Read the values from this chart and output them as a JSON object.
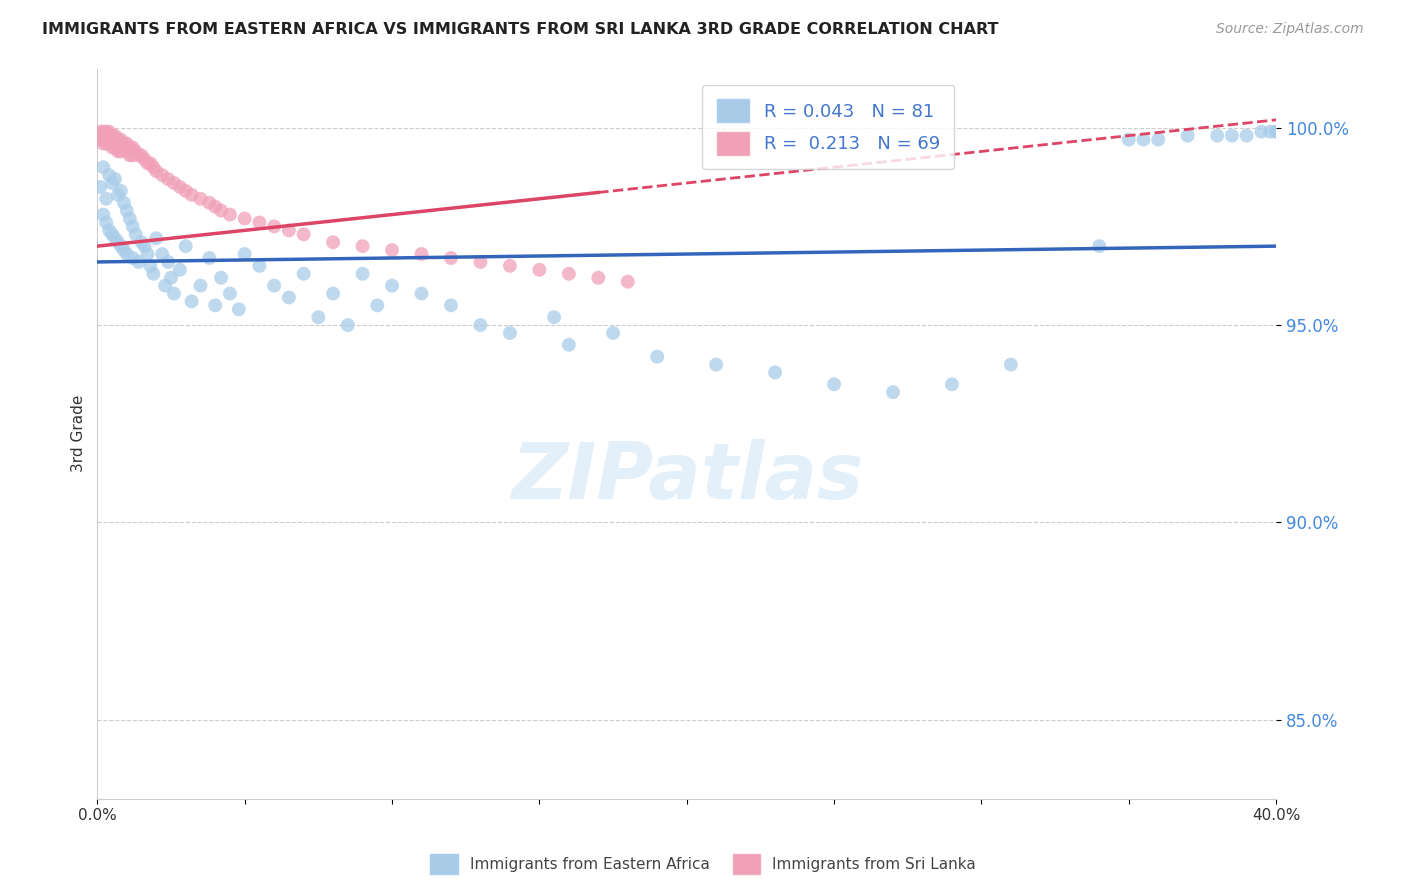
{
  "title": "IMMIGRANTS FROM EASTERN AFRICA VS IMMIGRANTS FROM SRI LANKA 3RD GRADE CORRELATION CHART",
  "source": "Source: ZipAtlas.com",
  "ylabel": "3rd Grade",
  "x_min": 0.0,
  "x_max": 0.4,
  "y_min": 0.83,
  "y_max": 1.015,
  "x_ticks": [
    0.0,
    0.05,
    0.1,
    0.15,
    0.2,
    0.25,
    0.3,
    0.35,
    0.4
  ],
  "y_ticks": [
    0.85,
    0.9,
    0.95,
    1.0
  ],
  "y_tick_labels": [
    "85.0%",
    "90.0%",
    "95.0%",
    "100.0%"
  ],
  "blue_color": "#a8cce8",
  "pink_color": "#f0a0b8",
  "blue_line_color": "#3366bb",
  "pink_line_color": "#dd4466",
  "legend_blue_R": "0.043",
  "legend_blue_N": "81",
  "legend_pink_R": "0.213",
  "legend_pink_N": "69",
  "blue_scatter_x": [
    0.001,
    0.002,
    0.002,
    0.003,
    0.003,
    0.004,
    0.004,
    0.005,
    0.005,
    0.006,
    0.006,
    0.007,
    0.007,
    0.008,
    0.008,
    0.009,
    0.009,
    0.01,
    0.01,
    0.011,
    0.012,
    0.012,
    0.013,
    0.014,
    0.015,
    0.016,
    0.017,
    0.018,
    0.019,
    0.02,
    0.022,
    0.023,
    0.024,
    0.025,
    0.026,
    0.028,
    0.03,
    0.032,
    0.035,
    0.038,
    0.04,
    0.042,
    0.045,
    0.048,
    0.05,
    0.055,
    0.06,
    0.065,
    0.07,
    0.075,
    0.08,
    0.085,
    0.09,
    0.095,
    0.1,
    0.11,
    0.12,
    0.13,
    0.14,
    0.155,
    0.16,
    0.175,
    0.19,
    0.21,
    0.23,
    0.25,
    0.27,
    0.29,
    0.31,
    0.34,
    0.35,
    0.355,
    0.36,
    0.37,
    0.38,
    0.385,
    0.39,
    0.395,
    0.398,
    0.4,
    0.4
  ],
  "blue_scatter_y": [
    0.985,
    0.99,
    0.978,
    0.982,
    0.976,
    0.988,
    0.974,
    0.986,
    0.973,
    0.987,
    0.972,
    0.983,
    0.971,
    0.984,
    0.97,
    0.981,
    0.969,
    0.979,
    0.968,
    0.977,
    0.975,
    0.967,
    0.973,
    0.966,
    0.971,
    0.97,
    0.968,
    0.965,
    0.963,
    0.972,
    0.968,
    0.96,
    0.966,
    0.962,
    0.958,
    0.964,
    0.97,
    0.956,
    0.96,
    0.967,
    0.955,
    0.962,
    0.958,
    0.954,
    0.968,
    0.965,
    0.96,
    0.957,
    0.963,
    0.952,
    0.958,
    0.95,
    0.963,
    0.955,
    0.96,
    0.958,
    0.955,
    0.95,
    0.948,
    0.952,
    0.945,
    0.948,
    0.942,
    0.94,
    0.938,
    0.935,
    0.933,
    0.935,
    0.94,
    0.97,
    0.997,
    0.997,
    0.997,
    0.998,
    0.998,
    0.998,
    0.998,
    0.999,
    0.999,
    0.999,
    0.999
  ],
  "pink_scatter_x": [
    0.001,
    0.001,
    0.001,
    0.002,
    0.002,
    0.002,
    0.002,
    0.003,
    0.003,
    0.003,
    0.003,
    0.004,
    0.004,
    0.004,
    0.005,
    0.005,
    0.005,
    0.006,
    0.006,
    0.006,
    0.007,
    0.007,
    0.007,
    0.008,
    0.008,
    0.008,
    0.009,
    0.009,
    0.01,
    0.01,
    0.011,
    0.011,
    0.012,
    0.012,
    0.013,
    0.014,
    0.015,
    0.016,
    0.017,
    0.018,
    0.019,
    0.02,
    0.022,
    0.024,
    0.026,
    0.028,
    0.03,
    0.032,
    0.035,
    0.038,
    0.04,
    0.042,
    0.045,
    0.05,
    0.055,
    0.06,
    0.065,
    0.07,
    0.08,
    0.09,
    0.1,
    0.11,
    0.12,
    0.13,
    0.14,
    0.15,
    0.16,
    0.17,
    0.18
  ],
  "pink_scatter_y": [
    0.999,
    0.998,
    0.997,
    0.999,
    0.998,
    0.997,
    0.996,
    0.999,
    0.998,
    0.997,
    0.996,
    0.999,
    0.998,
    0.996,
    0.998,
    0.997,
    0.995,
    0.998,
    0.997,
    0.995,
    0.997,
    0.996,
    0.994,
    0.997,
    0.996,
    0.994,
    0.996,
    0.995,
    0.996,
    0.994,
    0.995,
    0.993,
    0.995,
    0.993,
    0.994,
    0.993,
    0.993,
    0.992,
    0.991,
    0.991,
    0.99,
    0.989,
    0.988,
    0.987,
    0.986,
    0.985,
    0.984,
    0.983,
    0.982,
    0.981,
    0.98,
    0.979,
    0.978,
    0.977,
    0.976,
    0.975,
    0.974,
    0.973,
    0.971,
    0.97,
    0.969,
    0.968,
    0.967,
    0.966,
    0.965,
    0.964,
    0.963,
    0.962,
    0.961
  ],
  "watermark": "ZIPatlas",
  "background_color": "#ffffff",
  "grid_color": "#cccccc"
}
